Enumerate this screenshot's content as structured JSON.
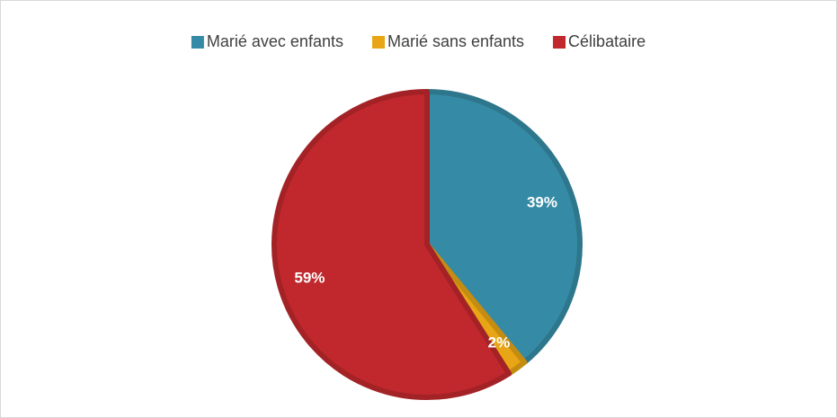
{
  "chart_data": {
    "type": "pie",
    "categories": [
      "Marié avec enfants",
      "Marié sans enfants",
      "Célibataire"
    ],
    "values": [
      39,
      2,
      59
    ],
    "value_labels": [
      "39%",
      "2%",
      "59%"
    ],
    "colors": [
      "#358ba5",
      "#e8a515",
      "#c0282d"
    ],
    "legend": "top"
  }
}
